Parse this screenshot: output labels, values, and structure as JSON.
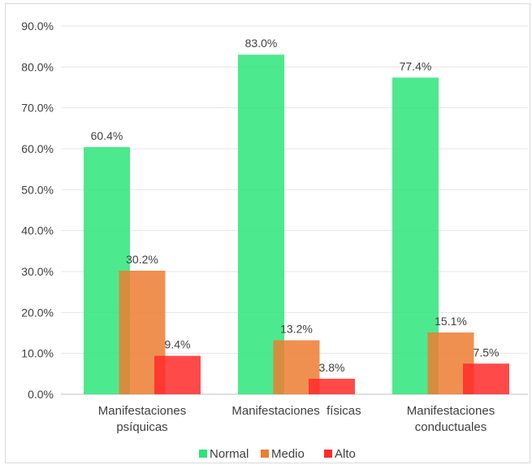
{
  "chart_data": {
    "type": "bar",
    "categories": [
      [
        "Manifestaciones",
        "psíquicas"
      ],
      [
        "Manifestaciones  físicas"
      ],
      [
        "Manifestaciones",
        "conductuales"
      ]
    ],
    "series": [
      {
        "name": "Normal",
        "color": "#2ee57a",
        "values": [
          60.4,
          83.0,
          77.4
        ],
        "labels": [
          "60.4%",
          "83.0%",
          "77.4%"
        ]
      },
      {
        "name": "Medio",
        "color": "#ed7d31",
        "values": [
          30.2,
          13.2,
          15.1
        ],
        "labels": [
          "30.2%",
          "13.2%",
          "15.1%"
        ]
      },
      {
        "name": "Alto",
        "color": "#ff2a2a",
        "values": [
          9.4,
          3.8,
          7.5
        ],
        "labels": [
          "9.4%",
          "3.8%",
          "7.5%"
        ]
      }
    ],
    "yticks": [
      "0.0%",
      "10.0%",
      "20.0%",
      "30.0%",
      "40.0%",
      "50.0%",
      "60.0%",
      "70.0%",
      "80.0%",
      "90.0%"
    ],
    "ylim": [
      0,
      90
    ],
    "grid": true,
    "legend": "bottom"
  }
}
